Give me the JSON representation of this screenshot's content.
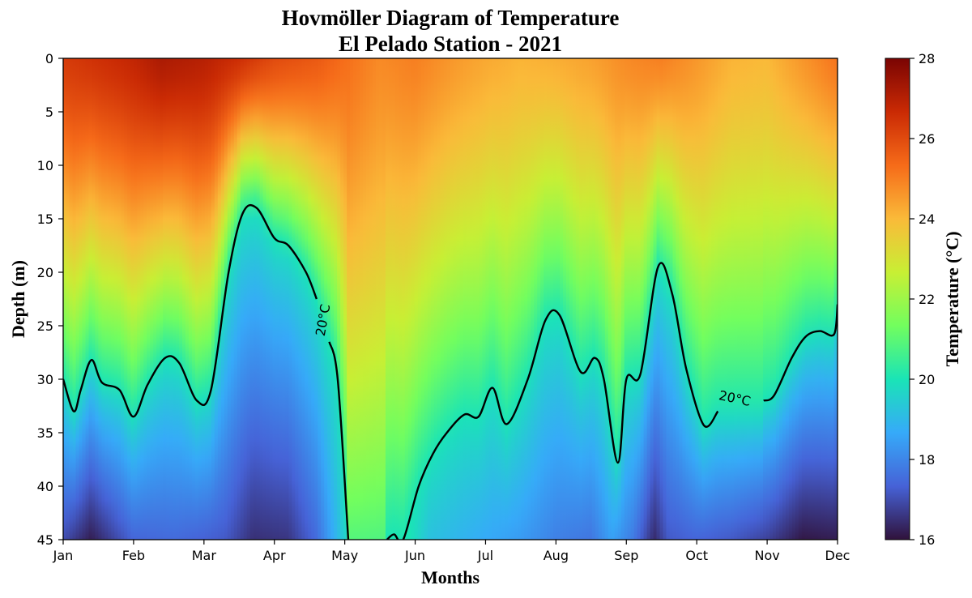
{
  "chart_data": {
    "type": "heatmap",
    "title": "Hovmöller Diagram of Temperature",
    "subtitle": "El Pelado Station - 2021",
    "xlabel": "Months",
    "ylabel": "Depth (m)",
    "x_ticks": [
      "Jan",
      "Feb",
      "Mar",
      "Apr",
      "May",
      "Jun",
      "Jul",
      "Aug",
      "Sep",
      "Oct",
      "Nov",
      "Dec"
    ],
    "y_ticks": [
      0,
      5,
      10,
      15,
      20,
      25,
      30,
      35,
      40,
      45
    ],
    "ylim": [
      0,
      45
    ],
    "y_inverted": true,
    "colorbar": {
      "label": "Temperature (°C)",
      "min": 16,
      "max": 28,
      "ticks": [
        16,
        18,
        20,
        22,
        24,
        26,
        28
      ],
      "colormap": "turbo",
      "colors": [
        "#30123b",
        "#4662d7",
        "#36aaf9",
        "#1ae4b6",
        "#72fe5e",
        "#c8ef34",
        "#faba39",
        "#f66b19",
        "#ca2a04",
        "#7a0403"
      ]
    },
    "contour": {
      "level": 20,
      "label": "20°C",
      "color": "#000000"
    },
    "depth_of_20C_isotherm_m": [
      {
        "month": 0.0,
        "depth": 30
      },
      {
        "month": 0.15,
        "depth": 33
      },
      {
        "month": 0.25,
        "depth": 31
      },
      {
        "month": 0.4,
        "depth": 28.2
      },
      {
        "month": 0.55,
        "depth": 30.3
      },
      {
        "month": 0.8,
        "depth": 31
      },
      {
        "month": 1.0,
        "depth": 33.5
      },
      {
        "month": 1.2,
        "depth": 30.5
      },
      {
        "month": 1.45,
        "depth": 28
      },
      {
        "month": 1.65,
        "depth": 28.5
      },
      {
        "month": 1.9,
        "depth": 32
      },
      {
        "month": 2.1,
        "depth": 31
      },
      {
        "month": 2.35,
        "depth": 20
      },
      {
        "month": 2.55,
        "depth": 14.5
      },
      {
        "month": 2.75,
        "depth": 14
      },
      {
        "month": 3.0,
        "depth": 16.8
      },
      {
        "month": 3.2,
        "depth": 17.5
      },
      {
        "month": 3.45,
        "depth": 20
      },
      {
        "month": 3.6,
        "depth": 22.5
      },
      {
        "month": 3.78,
        "depth": 26.5
      },
      {
        "month": 3.9,
        "depth": 30
      },
      {
        "month": 4.05,
        "depth": 45
      }
    ],
    "depth_of_20C_isotherm_m_segment2": [
      {
        "month": 4.6,
        "depth": 45
      },
      {
        "month": 4.7,
        "depth": 44.5
      },
      {
        "month": 4.83,
        "depth": 45
      },
      {
        "month": 5.05,
        "depth": 40
      },
      {
        "month": 5.25,
        "depth": 37
      },
      {
        "month": 5.45,
        "depth": 35
      },
      {
        "month": 5.7,
        "depth": 33.3
      },
      {
        "month": 5.9,
        "depth": 33.5
      },
      {
        "month": 6.1,
        "depth": 30.8
      },
      {
        "month": 6.3,
        "depth": 34.2
      },
      {
        "month": 6.6,
        "depth": 30
      },
      {
        "month": 6.85,
        "depth": 24.5
      },
      {
        "month": 7.05,
        "depth": 24
      },
      {
        "month": 7.35,
        "depth": 29.3
      },
      {
        "month": 7.55,
        "depth": 28
      },
      {
        "month": 7.68,
        "depth": 30
      },
      {
        "month": 7.88,
        "depth": 37.8
      },
      {
        "month": 8.0,
        "depth": 30
      },
      {
        "month": 8.2,
        "depth": 29.5
      },
      {
        "month": 8.45,
        "depth": 19.5
      },
      {
        "month": 8.65,
        "depth": 22
      },
      {
        "month": 8.85,
        "depth": 29
      },
      {
        "month": 9.1,
        "depth": 34.3
      },
      {
        "month": 9.3,
        "depth": 33
      }
    ],
    "depth_of_20C_isotherm_m_segment3": [
      {
        "month": 9.95,
        "depth": 32
      },
      {
        "month": 10.1,
        "depth": 31.5
      },
      {
        "month": 10.35,
        "depth": 28
      },
      {
        "month": 10.55,
        "depth": 26
      },
      {
        "month": 10.75,
        "depth": 25.5
      },
      {
        "month": 10.95,
        "depth": 25.8
      },
      {
        "month": 11.0,
        "depth": 23
      }
    ]
  }
}
